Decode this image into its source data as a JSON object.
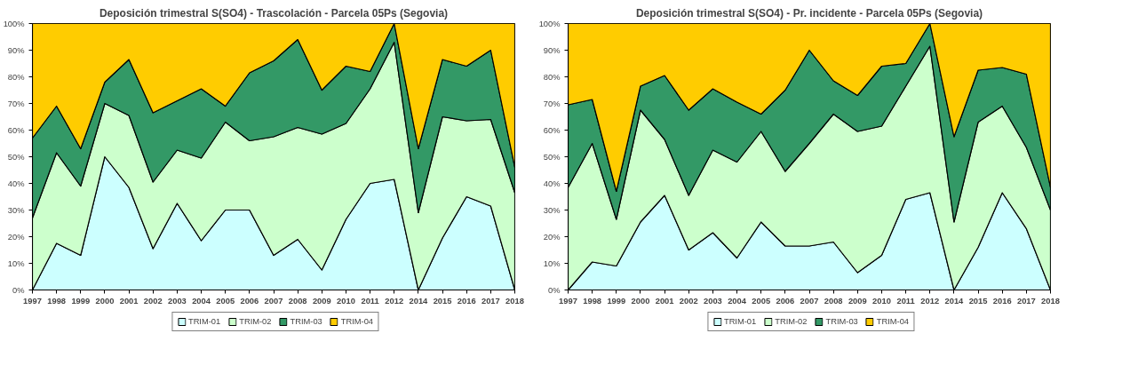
{
  "chart_data": [
    {
      "type": "area",
      "stacked": true,
      "title": "Deposición trimestral S(SO4) - Trascolación - Parcela 05Ps (Segovia)",
      "categories": [
        "1997",
        "1998",
        "1999",
        "2000",
        "2001",
        "2002",
        "2003",
        "2004",
        "2005",
        "2006",
        "2007",
        "2008",
        "2009",
        "2010",
        "2011",
        "2012",
        "2014",
        "2015",
        "2016",
        "2017",
        "2018"
      ],
      "ylim": [
        0,
        100
      ],
      "yticks": [
        {
          "value": 0,
          "label": "0%"
        },
        {
          "value": 10,
          "label": "10%"
        },
        {
          "value": 20,
          "label": "20%"
        },
        {
          "value": 30,
          "label": "30%"
        },
        {
          "value": 40,
          "label": "40%"
        },
        {
          "value": 50,
          "label": "50%"
        },
        {
          "value": 60,
          "label": "60%"
        },
        {
          "value": 70,
          "label": "70%"
        },
        {
          "value": 80,
          "label": "80%"
        },
        {
          "value": 90,
          "label": "90%"
        },
        {
          "value": 100,
          "label": "100%"
        }
      ],
      "grid": false,
      "legend": "bottom",
      "series": [
        {
          "name": "TRIM-01",
          "color": "#ccffff",
          "values": [
            0,
            17.5,
            13,
            50,
            38.5,
            15.5,
            32.5,
            18.5,
            30,
            30,
            13,
            19,
            7.5,
            26.5,
            40,
            41.5,
            0,
            19.5,
            35,
            31.5,
            0
          ]
        },
        {
          "name": "TRIM-02",
          "color": "#ccffcc",
          "values": [
            27,
            34,
            26,
            20,
            27,
            25,
            20,
            31,
            33,
            26,
            44.5,
            42,
            51,
            36,
            35.5,
            51.5,
            29,
            45.5,
            28.5,
            32.5,
            36.5
          ]
        },
        {
          "name": "TRIM-03",
          "color": "#339966",
          "values": [
            30,
            17.5,
            14,
            8,
            21,
            26,
            18.5,
            26,
            6,
            25.5,
            28.5,
            33,
            16.5,
            21.5,
            6.5,
            7,
            24,
            21.5,
            20.5,
            26,
            9.5
          ]
        },
        {
          "name": "TRIM-04",
          "color": "#ffcc00",
          "values": [
            43,
            31,
            47,
            22,
            13.5,
            33.5,
            29,
            24.5,
            31,
            18.5,
            14,
            6,
            25,
            16,
            18,
            0,
            47,
            13.5,
            16,
            10,
            54
          ]
        }
      ]
    },
    {
      "type": "area",
      "stacked": true,
      "title": "Deposición trimestral S(SO4) - Pr. incidente - Parcela 05Ps (Segovia)",
      "categories": [
        "1997",
        "1998",
        "1999",
        "2000",
        "2001",
        "2002",
        "2003",
        "2004",
        "2005",
        "2006",
        "2007",
        "2008",
        "2009",
        "2010",
        "2011",
        "2012",
        "2014",
        "2015",
        "2016",
        "2017",
        "2018"
      ],
      "ylim": [
        0,
        100
      ],
      "yticks": [
        {
          "value": 0,
          "label": "0%"
        },
        {
          "value": 10,
          "label": "10%"
        },
        {
          "value": 20,
          "label": "20%"
        },
        {
          "value": 30,
          "label": "30%"
        },
        {
          "value": 40,
          "label": "40%"
        },
        {
          "value": 50,
          "label": "50%"
        },
        {
          "value": 60,
          "label": "60%"
        },
        {
          "value": 70,
          "label": "70%"
        },
        {
          "value": 80,
          "label": "80%"
        },
        {
          "value": 90,
          "label": "90%"
        },
        {
          "value": 100,
          "label": "100%"
        }
      ],
      "grid": false,
      "legend": "bottom",
      "series": [
        {
          "name": "TRIM-01",
          "color": "#ccffff",
          "values": [
            0,
            10.5,
            9,
            25.5,
            35.5,
            15,
            21.5,
            12,
            25.5,
            16.5,
            16.5,
            18,
            6.5,
            13,
            34,
            36.5,
            0,
            16,
            36.5,
            23,
            0
          ]
        },
        {
          "name": "TRIM-02",
          "color": "#ccffcc",
          "values": [
            38.5,
            44.5,
            17.5,
            42,
            21,
            20.5,
            31,
            36,
            34,
            28,
            38.5,
            48,
            53,
            48.5,
            42.5,
            55,
            25.5,
            47,
            32.5,
            30.5,
            30
          ]
        },
        {
          "name": "TRIM-03",
          "color": "#339966",
          "values": [
            31,
            16.5,
            10.5,
            9,
            24,
            32,
            23,
            22.5,
            6.5,
            30.5,
            35,
            12.5,
            13.5,
            22.5,
            8.5,
            8.5,
            32,
            19.5,
            14.5,
            27.5,
            8.5
          ]
        },
        {
          "name": "TRIM-04",
          "color": "#ffcc00",
          "values": [
            30.5,
            28.5,
            63,
            23.5,
            19.5,
            32.5,
            24.5,
            29.5,
            34,
            25,
            10,
            21.5,
            27,
            16,
            15,
            0,
            42.5,
            17.5,
            16.5,
            19,
            61.5
          ]
        }
      ]
    }
  ]
}
